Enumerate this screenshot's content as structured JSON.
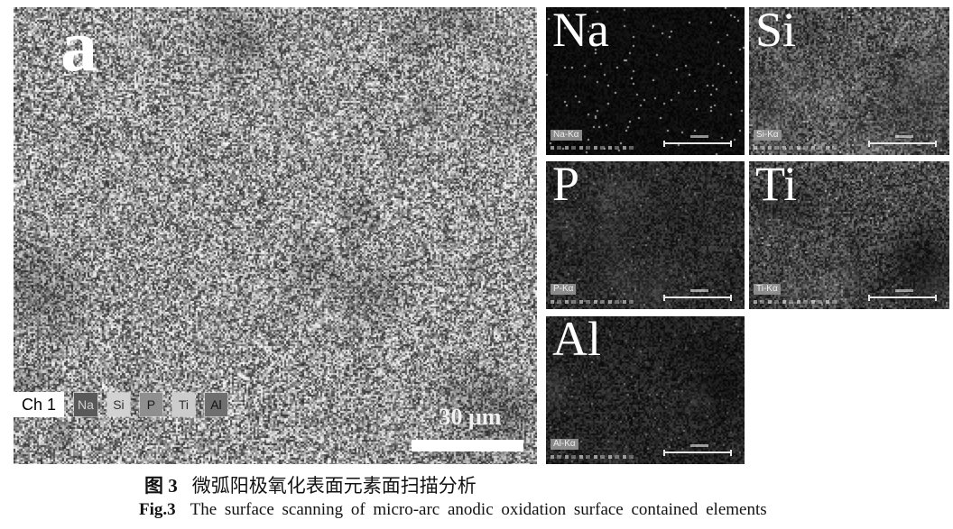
{
  "figure": {
    "main_panel": {
      "label": "a",
      "channel_label": "Ch 1",
      "element_badges": [
        {
          "label": "Na",
          "bg": "#595959",
          "fg": "#d2d2d2"
        },
        {
          "label": "Si",
          "bg": "#d2d2d2",
          "fg": "#2e2e2e"
        },
        {
          "label": "P",
          "bg": "#8f8f8f",
          "fg": "#1c1c1c"
        },
        {
          "label": "Ti",
          "bg": "#cccccc",
          "fg": "#2e2e2e"
        },
        {
          "label": "Al",
          "bg": "#6f6f6f",
          "fg": "#101010"
        }
      ],
      "scale_bar_label": "30 μm",
      "noise": {
        "base": 45,
        "range": 210,
        "block": 2,
        "clouds": 40
      }
    },
    "maps": [
      {
        "element": "Na",
        "line_label": "Na-Kα",
        "noise": {
          "base": 3,
          "range": 22,
          "block": 2,
          "speck": 0.012,
          "boost": 150,
          "clouds": 0
        }
      },
      {
        "element": "Si",
        "line_label": "Si-Kα",
        "noise": {
          "base": 22,
          "range": 135,
          "block": 2,
          "speck": 0.04,
          "boost": 70,
          "clouds": 30
        }
      },
      {
        "element": "P",
        "line_label": "P-Kα",
        "noise": {
          "base": 10,
          "range": 65,
          "block": 2,
          "speck": 0.015,
          "boost": 60,
          "clouds": 12
        }
      },
      {
        "element": "Ti",
        "line_label": "Ti-Kα",
        "noise": {
          "base": 16,
          "range": 110,
          "block": 2,
          "speck": 0.03,
          "boost": 70,
          "clouds": 25
        }
      },
      {
        "element": "Al",
        "line_label": "Al-Kα",
        "noise": {
          "base": 8,
          "range": 58,
          "block": 2,
          "speck": 0.015,
          "boost": 60,
          "clouds": 12
        }
      }
    ],
    "captions": {
      "zh_tag": "图 3",
      "zh_text": "微弧阳极氧化表面元素面扫描分析",
      "en_tag": "Fig.3",
      "en_text": "The surface scanning of micro-arc anodic oxidation surface contained elements"
    }
  }
}
